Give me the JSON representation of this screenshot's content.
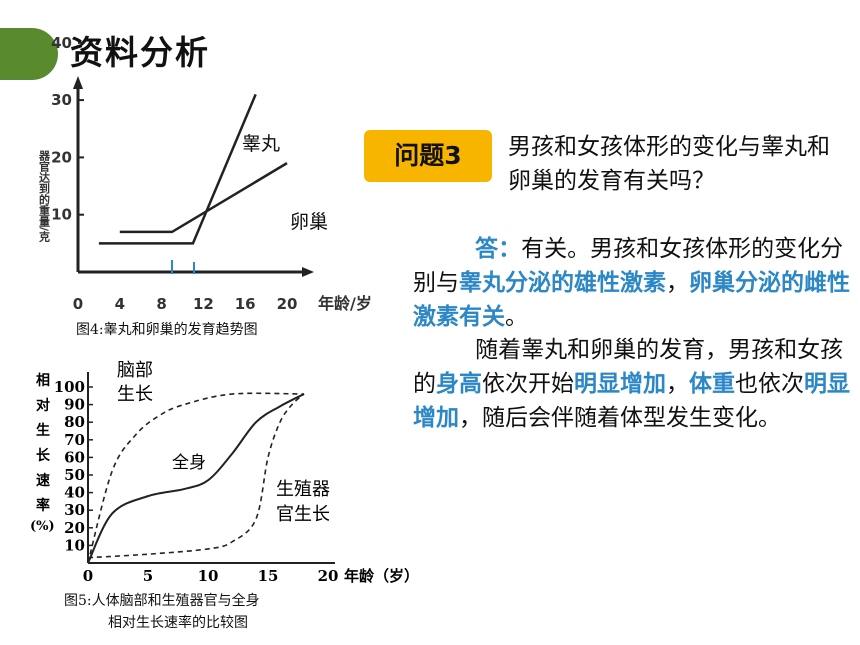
{
  "header": {
    "title": "资料分析"
  },
  "question": {
    "badge": "问题3",
    "text": "男孩和女孩体形的变化与睾丸和卵巢的发育有关吗？"
  },
  "answer": {
    "p1": [
      {
        "t": "答：",
        "hl": true
      },
      {
        "t": "有关。男孩和女孩体形的变化分别与",
        "hl": false
      },
      {
        "t": "睾丸分泌的雄性激素",
        "hl": true
      },
      {
        "t": "，",
        "hl": false
      },
      {
        "t": "卵巢分泌的雌性激素有关",
        "hl": true
      },
      {
        "t": "。",
        "hl": false
      }
    ],
    "p2": [
      {
        "t": "随着睾丸和卵巢的发育，男孩和女孩的",
        "hl": false
      },
      {
        "t": "身高",
        "hl": true
      },
      {
        "t": "依次开始",
        "hl": false
      },
      {
        "t": "明显增加",
        "hl": true
      },
      {
        "t": "，",
        "hl": false
      },
      {
        "t": "体重",
        "hl": true
      },
      {
        "t": "也依次",
        "hl": false
      },
      {
        "t": "明显增加",
        "hl": true
      },
      {
        "t": "，随后会伴随着体型发生变化。",
        "hl": false
      }
    ]
  },
  "figure4": {
    "caption": "图4:睾丸和卵巢的发育趋势图",
    "ylabel": "器官达到的重量/克",
    "xlabel": "年龄/岁",
    "xticks": [
      "0",
      "4",
      "8",
      "12",
      "16",
      "20"
    ],
    "yticks": [
      "10",
      "20",
      "30",
      "40"
    ],
    "series": [
      {
        "name": "睾丸",
        "points": [
          [
            2,
            5
          ],
          [
            11,
            5
          ],
          [
            17,
            31
          ]
        ]
      },
      {
        "name": "卵巢",
        "points": [
          [
            4,
            7
          ],
          [
            9,
            7
          ],
          [
            20,
            19
          ]
        ]
      }
    ]
  },
  "figure5": {
    "caption_line1": "图5:人体脑部和生殖器官与全身",
    "caption_line2": "相对生长速率的比较图",
    "ylabel": "相对生长速率(%)",
    "xlabel": "年龄（岁）",
    "xticks": [
      "0",
      "5",
      "10",
      "15",
      "20"
    ],
    "yticks": [
      "10",
      "20",
      "30",
      "40",
      "50",
      "60",
      "70",
      "80",
      "90",
      "100"
    ],
    "series": [
      {
        "name": "脑部生长",
        "points": [
          [
            0,
            0
          ],
          [
            2,
            52
          ],
          [
            4,
            73
          ],
          [
            6,
            84
          ],
          [
            8,
            90
          ],
          [
            12,
            96
          ],
          [
            18,
            96
          ]
        ]
      },
      {
        "name": "全身",
        "points": [
          [
            0,
            0
          ],
          [
            2,
            28
          ],
          [
            5,
            38
          ],
          [
            8,
            42
          ],
          [
            10,
            47
          ],
          [
            12,
            62
          ],
          [
            14,
            80
          ],
          [
            16,
            89
          ],
          [
            18,
            96
          ]
        ]
      },
      {
        "name": "生殖器官生长",
        "points": [
          [
            0,
            3
          ],
          [
            5,
            5
          ],
          [
            10,
            8
          ],
          [
            12,
            12
          ],
          [
            14,
            25
          ],
          [
            15,
            60
          ],
          [
            16,
            80
          ],
          [
            17,
            90
          ],
          [
            18,
            96
          ]
        ]
      }
    ]
  }
}
